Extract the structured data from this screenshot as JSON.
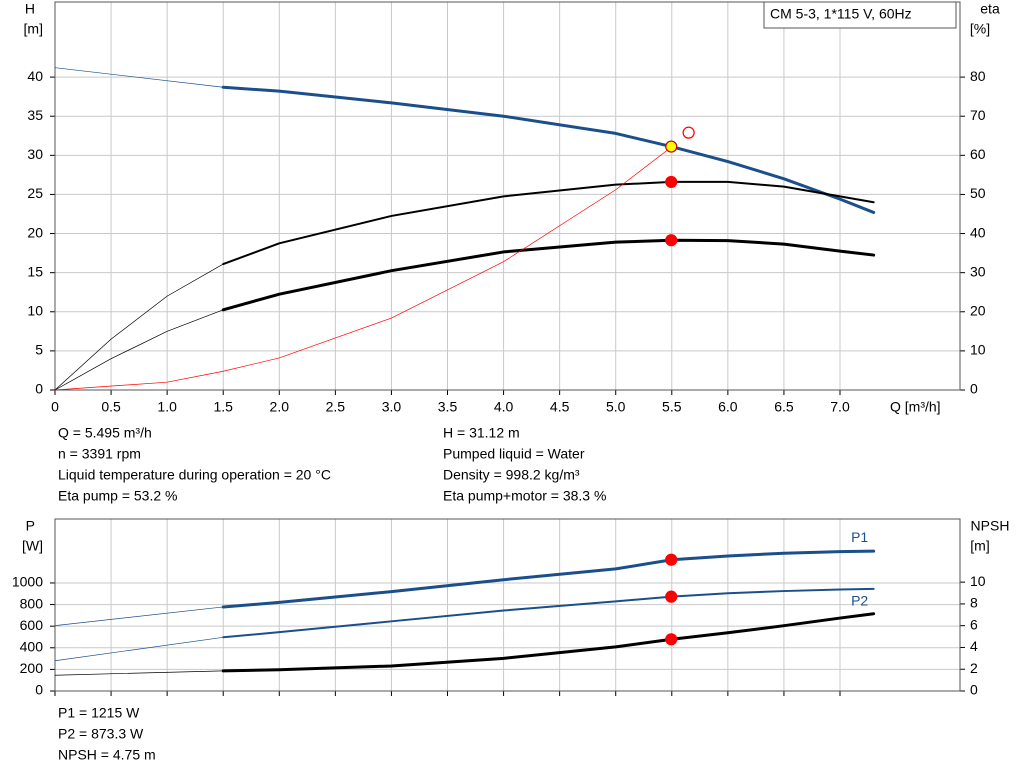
{
  "chart_data": [
    {
      "type": "line",
      "title": "CM 5-3, 1*115 V, 60Hz",
      "y_label": "H",
      "y_unit": "[m]",
      "y2_label": "eta",
      "y2_unit": "[%]",
      "x_label": "Q [m³/h]",
      "xlim": [
        0,
        8.07
      ],
      "ylim": [
        0,
        49.6
      ],
      "y2lim": [
        0,
        99.2
      ],
      "xticks": [
        0,
        0.5,
        {
          "value": 1,
          "label": "1.0"
        },
        1.5,
        {
          "value": 2,
          "label": "2.0"
        },
        2.5,
        {
          "value": 3,
          "label": "3.0"
        },
        3.5,
        {
          "value": 4,
          "label": "4.0"
        },
        4.5,
        {
          "value": 5,
          "label": "5.0"
        },
        5.5,
        {
          "value": 6,
          "label": "6.0"
        },
        6.5,
        {
          "value": 7,
          "label": "7.0"
        }
      ],
      "show_xtick_labels": true,
      "yticks": [
        0,
        5,
        10,
        15,
        20,
        25,
        30,
        35,
        40
      ],
      "y2ticks": [
        0,
        10,
        20,
        30,
        40,
        50,
        60,
        70,
        80
      ],
      "grid": true,
      "thick_from": 1.5,
      "series": [
        {
          "axis": "y",
          "color": "#1a4f8b",
          "width": 3,
          "x": [
            0,
            1.5,
            2,
            3,
            4,
            5,
            5.5,
            6,
            6.5,
            7,
            7.3
          ],
          "values": [
            41.2,
            38.7,
            38.2,
            36.7,
            35.0,
            32.8,
            31.1,
            29.2,
            27.0,
            24.4,
            22.7
          ]
        },
        {
          "axis": "y2",
          "color": "#000000",
          "width": 2,
          "x": [
            0,
            0.5,
            1,
            1.5,
            2,
            3,
            4,
            5,
            5.5,
            6,
            6.5,
            7,
            7.3
          ],
          "values": [
            0,
            13,
            24,
            32.2,
            37.5,
            44.5,
            49.5,
            52.5,
            53.2,
            53.2,
            52,
            49.5,
            48
          ]
        },
        {
          "axis": "y2",
          "color": "#000000",
          "width": 3,
          "x": [
            0,
            0.5,
            1,
            1.5,
            2,
            3,
            4,
            5,
            5.5,
            6,
            6.5,
            7,
            7.3
          ],
          "values": [
            0,
            8,
            15,
            20.5,
            24.5,
            30.5,
            35.3,
            37.8,
            38.3,
            38.2,
            37.3,
            35.5,
            34.5
          ]
        },
        {
          "axis": "y",
          "color": "#ff0000",
          "width": 0.7,
          "x": [
            0,
            1,
            1.5,
            2,
            3,
            4,
            5,
            5.5
          ],
          "values": [
            0,
            1.0,
            2.4,
            4.1,
            9.2,
            16.4,
            25.6,
            31.1
          ]
        }
      ],
      "points": [
        {
          "axis": "y",
          "x": 5.495,
          "y": 31.12,
          "fill": "#ffff00",
          "stroke": "#c00000"
        },
        {
          "axis": "y2",
          "x": 5.495,
          "y": 53.2,
          "fill": "#ff0000",
          "stroke": "#ff0000"
        },
        {
          "axis": "y2",
          "x": 5.495,
          "y": 38.3,
          "fill": "#ff0000",
          "stroke": "#ff0000"
        },
        {
          "axis": "y",
          "x": 5.65,
          "y": 32.9,
          "fill": "none",
          "stroke": "#ff0000"
        }
      ],
      "annotations_left": [
        "Q = 5.495 m³/h",
        "n = 3391 rpm",
        "Liquid temperature during operation = 20 °C",
        "Eta pump = 53.2 %"
      ],
      "annotations_right": [
        "H = 31.12 m",
        "Pumped liquid = Water",
        "Density = 998.2 kg/m³",
        "Eta pump+motor = 38.3 %"
      ]
    },
    {
      "type": "line",
      "y_label": "P",
      "y_unit": "[W]",
      "y2_label": "NPSH",
      "y2_unit": "[m]",
      "xlim": [
        0,
        8.07
      ],
      "ylim": [
        0,
        1592
      ],
      "y2lim": [
        0,
        15.8
      ],
      "xticks": [
        0,
        0.5,
        1,
        1.5,
        2,
        2.5,
        3,
        3.5,
        4,
        4.5,
        5,
        5.5,
        6,
        6.5,
        7
      ],
      "show_xtick_labels": false,
      "yticks": [
        0,
        200,
        400,
        600,
        800,
        1000
      ],
      "y2ticks": [
        0,
        2,
        4,
        6,
        8,
        10
      ],
      "grid": true,
      "thick_from": 1.5,
      "series": [
        {
          "name": "P1",
          "axis": "y",
          "color": "#1a4f8b",
          "width": 3,
          "x": [
            0,
            1.5,
            2,
            3,
            4,
            5,
            5.5,
            6,
            6.5,
            7,
            7.3
          ],
          "values": [
            605,
            778,
            820,
            920,
            1030,
            1130,
            1215,
            1250,
            1275,
            1290,
            1295
          ]
        },
        {
          "name": "P2",
          "axis": "y",
          "color": "#1a4f8b",
          "width": 2,
          "x": [
            0,
            1.5,
            2,
            3,
            4,
            5,
            5.5,
            6,
            6.5,
            7,
            7.3
          ],
          "values": [
            280,
            497,
            545,
            645,
            745,
            830,
            873.3,
            905,
            925,
            940,
            945
          ]
        },
        {
          "axis": "y2",
          "color": "#000000",
          "width": 3,
          "x": [
            0,
            1.5,
            2,
            3,
            4,
            5,
            5.5,
            6,
            6.5,
            7,
            7.3
          ],
          "values": [
            1.45,
            1.85,
            1.95,
            2.3,
            3.0,
            4.05,
            4.75,
            5.35,
            6.0,
            6.7,
            7.1
          ]
        }
      ],
      "points": [
        {
          "axis": "y",
          "x": 5.495,
          "y": 1215,
          "fill": "#ff0000",
          "stroke": "#ff0000"
        },
        {
          "axis": "y",
          "x": 5.495,
          "y": 873.3,
          "fill": "#ff0000",
          "stroke": "#ff0000"
        },
        {
          "axis": "y2",
          "x": 5.495,
          "y": 4.75,
          "fill": "#ff0000",
          "stroke": "#ff0000"
        }
      ],
      "annotations_left": [
        "P1 = 1215 W",
        "P2 = 873.3 W",
        "NPSH = 4.75 m"
      ]
    }
  ]
}
